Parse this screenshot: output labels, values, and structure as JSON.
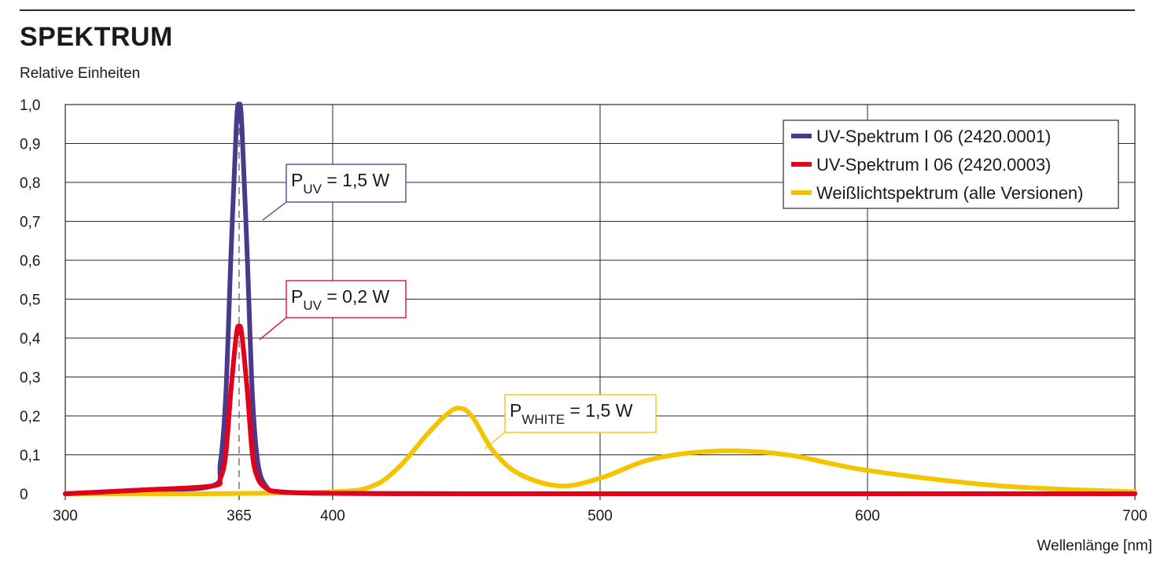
{
  "title": "SPEKTRUM",
  "unit_label": "Relative Einheiten",
  "chart_data": {
    "type": "line",
    "title": "SPEKTRUM",
    "ylabel": "Relative Einheiten",
    "xlabel": "Wellenlänge [nm]",
    "xlim": [
      300,
      700
    ],
    "ylim": [
      0,
      1.0
    ],
    "grid": true,
    "legend_position": "top-right",
    "x_ticks": [
      300,
      365,
      400,
      500,
      600,
      700
    ],
    "x_tick_labels": [
      "300",
      "365",
      "400",
      "500",
      "600",
      "700"
    ],
    "y_ticks": [
      0,
      0.1,
      0.2,
      0.3,
      0.4,
      0.5,
      0.6,
      0.7,
      0.8,
      0.9,
      1.0
    ],
    "y_tick_labels": [
      "0",
      "0,1",
      "0,2",
      "0,3",
      "0,4",
      "0,5",
      "0,6",
      "0,7",
      "0,8",
      "0,9",
      "1,0"
    ],
    "series": [
      {
        "name": "UV-Spektrum I 06 (2420.0001)",
        "color": "#4b3a8c",
        "x": [
          300,
          330,
          355,
          358,
          360,
          362,
          364,
          365,
          366,
          368,
          370,
          372,
          375,
          380,
          400,
          450,
          500,
          600,
          700
        ],
        "y": [
          0.0,
          0.01,
          0.02,
          0.08,
          0.25,
          0.62,
          0.95,
          1.0,
          0.95,
          0.62,
          0.25,
          0.08,
          0.02,
          0.005,
          0.001,
          0.0,
          0.0,
          0.0,
          0.0
        ]
      },
      {
        "name": "UV-Spektrum I 06 (2420.0003)",
        "color": "#e2001a",
        "x": [
          300,
          330,
          355,
          358,
          360,
          362,
          364,
          365,
          366,
          368,
          370,
          372,
          375,
          380,
          400,
          450,
          500,
          600,
          700
        ],
        "y": [
          0.0,
          0.01,
          0.02,
          0.04,
          0.1,
          0.27,
          0.41,
          0.43,
          0.41,
          0.27,
          0.1,
          0.04,
          0.015,
          0.005,
          0.001,
          0.0,
          0.0,
          0.0,
          0.0
        ]
      },
      {
        "name": "Weißlichtspektrum (alle Versionen)",
        "color": "#f5c400",
        "x": [
          300,
          350,
          400,
          415,
          425,
          435,
          442,
          447,
          452,
          460,
          470,
          485,
          500,
          520,
          545,
          570,
          600,
          650,
          700
        ],
        "y": [
          0.0,
          0.0,
          0.005,
          0.02,
          0.07,
          0.15,
          0.2,
          0.22,
          0.2,
          0.11,
          0.05,
          0.02,
          0.04,
          0.09,
          0.11,
          0.1,
          0.06,
          0.02,
          0.005
        ]
      }
    ],
    "annotations": [
      {
        "main": "P",
        "sub": "UV",
        "rest": " = 1,5 W",
        "series": 0
      },
      {
        "main": "P",
        "sub": "UV",
        "rest": " = 0,2 W",
        "series": 1
      },
      {
        "main": "P",
        "sub": "WHITE",
        "rest": " = 1,5 W",
        "series": 2
      }
    ]
  }
}
